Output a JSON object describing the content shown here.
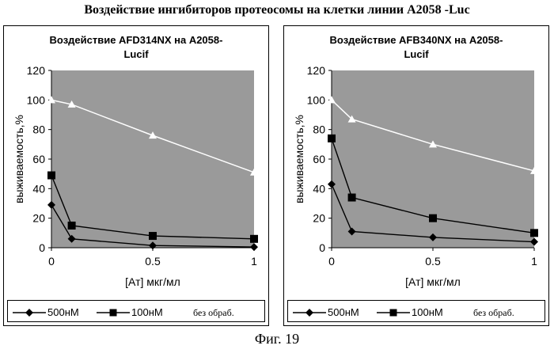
{
  "page": {
    "title": "Воздействие ингибиторов протеосомы на клетки линии A2058 -Luc",
    "caption": "Фиг. 19"
  },
  "colors": {
    "plot_background": "#9a9a9a",
    "series_1": "#000000",
    "series_2": "#000000",
    "series_3": "#ffffff",
    "axis": "#000000"
  },
  "chart_data": [
    {
      "type": "line",
      "title_line1": "Воздействие AFD314NX на A2058-",
      "title_line2": "Lucif",
      "xlabel": "[Ат] мкг/мл",
      "ylabel": "выживаемость,%",
      "xlim": [
        0,
        1
      ],
      "ylim": [
        0,
        120
      ],
      "xticks": [
        "0",
        "0.5",
        "1"
      ],
      "yticks": [
        "0",
        "20",
        "40",
        "60",
        "80",
        "100",
        "120"
      ],
      "grid": false,
      "legend_position": "bottom",
      "series": [
        {
          "name": "500нМ",
          "marker": "diamond",
          "color": "#000000",
          "x": [
            0,
            0.1,
            0.5,
            1
          ],
          "y": [
            29,
            6,
            1.5,
            0.5
          ]
        },
        {
          "name": "100нМ",
          "marker": "square",
          "color": "#000000",
          "x": [
            0,
            0.1,
            0.5,
            1
          ],
          "y": [
            49,
            15,
            8,
            6
          ]
        },
        {
          "name": "без обраб.",
          "marker": "triangle",
          "color": "#ffffff",
          "x": [
            0,
            0.1,
            0.5,
            1
          ],
          "y": [
            100,
            97,
            76,
            51
          ]
        }
      ]
    },
    {
      "type": "line",
      "title_line1": "Воздействие AFB340NX на A2058-",
      "title_line2": "Lucif",
      "xlabel": "[Ат] мкг/мл",
      "ylabel": "выживаемость,%",
      "xlim": [
        0,
        1
      ],
      "ylim": [
        0,
        120
      ],
      "xticks": [
        "0",
        "0.5",
        "1"
      ],
      "yticks": [
        "0",
        "20",
        "40",
        "60",
        "80",
        "100",
        "120"
      ],
      "grid": false,
      "legend_position": "bottom",
      "series": [
        {
          "name": "500нМ",
          "marker": "diamond",
          "color": "#000000",
          "x": [
            0,
            0.1,
            0.5,
            1
          ],
          "y": [
            43,
            11,
            7,
            4
          ]
        },
        {
          "name": "100нМ",
          "marker": "square",
          "color": "#000000",
          "x": [
            0,
            0.1,
            0.5,
            1
          ],
          "y": [
            74,
            34,
            20,
            10
          ]
        },
        {
          "name": "без обраб.",
          "marker": "triangle",
          "color": "#ffffff",
          "x": [
            0,
            0.1,
            0.5,
            1
          ],
          "y": [
            100,
            87,
            70,
            52
          ]
        }
      ]
    }
  ]
}
